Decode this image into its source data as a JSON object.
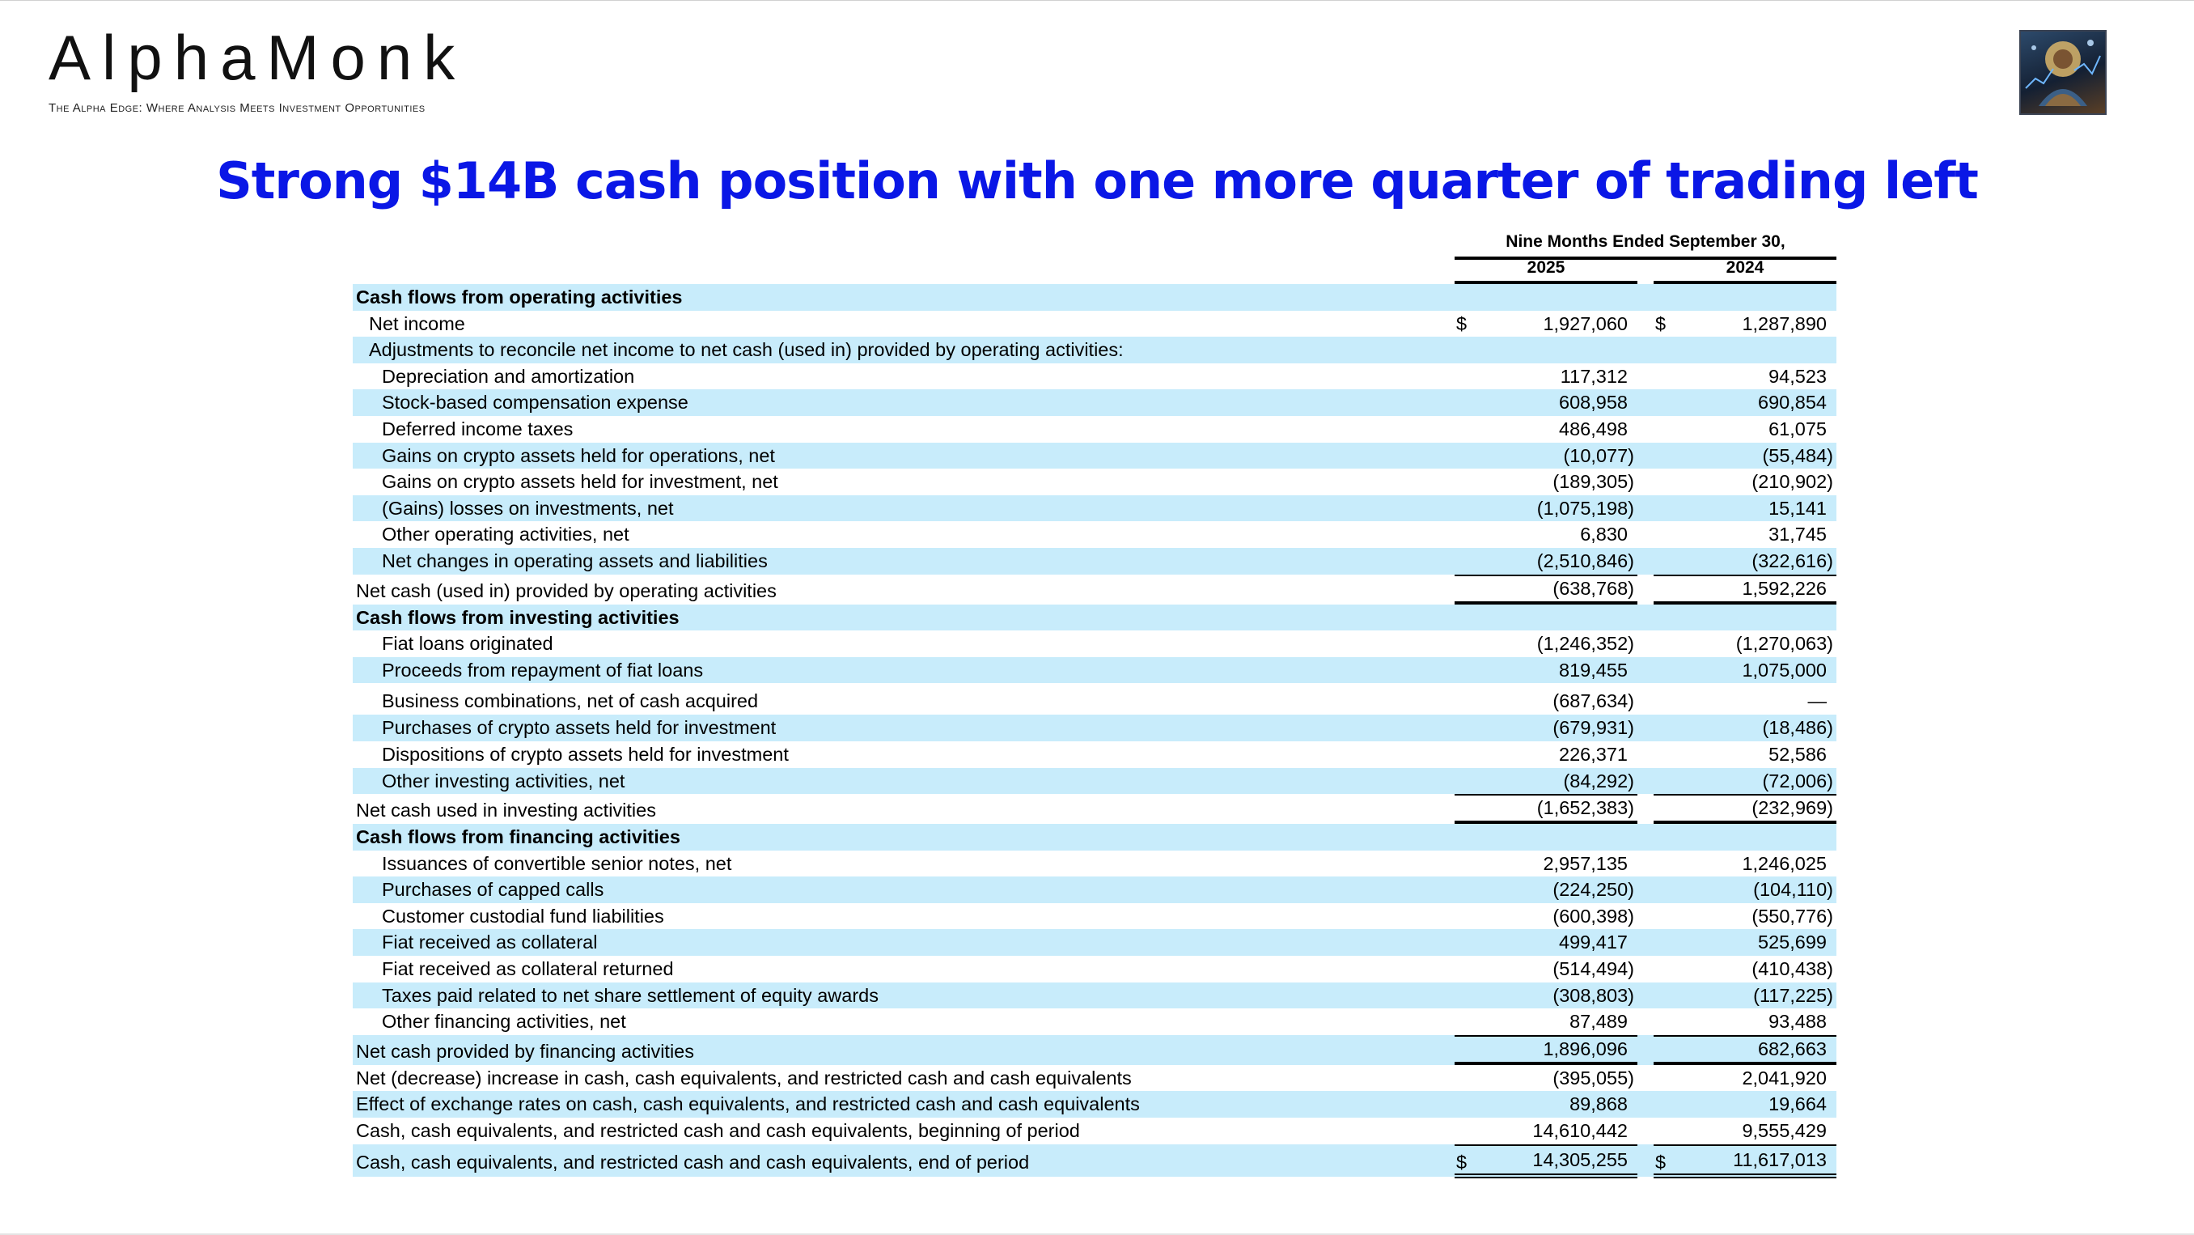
{
  "brand": {
    "name": "AlphaMonk",
    "tagline": "The Alpha Edge: Where Analysis Meets Investment Opportunities"
  },
  "logo": {
    "icon": "monk-meditating-icon"
  },
  "headline": "Strong $14B cash position with one more quarter of trading left",
  "colors": {
    "headline": "#0a17e6",
    "row_shade": "#c8ecfb"
  },
  "table": {
    "period_header": "Nine Months Ended September 30,",
    "year_1": "2025",
    "year_2": "2024",
    "currency": "$",
    "rows": [
      {
        "label": "Cash flows from operating activities",
        "v1": "",
        "v2": "",
        "bold": true,
        "indent": 0,
        "shade": true
      },
      {
        "label": "Net income",
        "v1": "1,927,060",
        "v2": "1,287,890",
        "indent": 1,
        "shade": false,
        "currency": true
      },
      {
        "label": "Adjustments to reconcile net income to net cash (used in) provided by operating activities:",
        "v1": "",
        "v2": "",
        "indent": 1,
        "shade": true
      },
      {
        "label": "Depreciation and amortization",
        "v1": "117,312",
        "v2": "94,523",
        "indent": 2,
        "shade": false
      },
      {
        "label": "Stock-based compensation expense",
        "v1": "608,958",
        "v2": "690,854",
        "indent": 2,
        "shade": true
      },
      {
        "label": "Deferred income taxes",
        "v1": "486,498",
        "v2": "61,075",
        "indent": 2,
        "shade": false
      },
      {
        "label": "Gains on crypto assets held for operations, net",
        "v1": "(10,077)",
        "v2": "(55,484)",
        "indent": 2,
        "shade": true
      },
      {
        "label": "Gains on crypto assets held for investment, net",
        "v1": "(189,305)",
        "v2": "(210,902)",
        "indent": 2,
        "shade": false
      },
      {
        "label": "(Gains) losses on investments, net",
        "v1": "(1,075,198)",
        "v2": "15,141",
        "indent": 2,
        "shade": true
      },
      {
        "label": "Other operating activities, net",
        "v1": "6,830",
        "v2": "31,745",
        "indent": 2,
        "shade": false
      },
      {
        "label": "Net changes in operating assets and liabilities",
        "v1": "(2,510,846)",
        "v2": "(322,616)",
        "indent": 2,
        "shade": true
      },
      {
        "label": "Net cash (used in) provided by operating activities",
        "v1": "(638,768)",
        "v2": "1,592,226",
        "indent": 0,
        "shade": false,
        "total": true
      },
      {
        "label": "Cash flows from investing activities",
        "v1": "",
        "v2": "",
        "bold": true,
        "indent": 0,
        "shade": true
      },
      {
        "label": "Fiat loans originated",
        "v1": "(1,246,352)",
        "v2": "(1,270,063)",
        "indent": 2,
        "shade": false
      },
      {
        "label": "Proceeds from repayment of fiat loans",
        "v1": "819,455",
        "v2": "1,075,000",
        "indent": 2,
        "shade": true
      },
      {
        "label": "Business combinations, net of cash acquired",
        "v1": "(687,634)",
        "v2": "—",
        "indent": 2,
        "shade": false
      },
      {
        "label": "Purchases of crypto assets held for investment",
        "v1": "(679,931)",
        "v2": "(18,486)",
        "indent": 2,
        "shade": true
      },
      {
        "label": "Dispositions of crypto assets held for investment",
        "v1": "226,371",
        "v2": "52,586",
        "indent": 2,
        "shade": false
      },
      {
        "label": "Other investing activities, net",
        "v1": "(84,292)",
        "v2": "(72,006)",
        "indent": 2,
        "shade": true
      },
      {
        "label": "Net cash used in investing activities",
        "v1": "(1,652,383)",
        "v2": "(232,969)",
        "indent": 0,
        "shade": false,
        "total": true
      },
      {
        "label": "Cash flows from financing activities",
        "v1": "",
        "v2": "",
        "bold": true,
        "indent": 0,
        "shade": true
      },
      {
        "label": "Issuances of convertible senior notes, net",
        "v1": "2,957,135",
        "v2": "1,246,025",
        "indent": 2,
        "shade": false
      },
      {
        "label": "Purchases of capped calls",
        "v1": "(224,250)",
        "v2": "(104,110)",
        "indent": 2,
        "shade": true
      },
      {
        "label": "Customer custodial fund liabilities",
        "v1": "(600,398)",
        "v2": "(550,776)",
        "indent": 2,
        "shade": false
      },
      {
        "label": "Fiat received as collateral",
        "v1": "499,417",
        "v2": "525,699",
        "indent": 2,
        "shade": true
      },
      {
        "label": "Fiat received as collateral returned",
        "v1": "(514,494)",
        "v2": "(410,438)",
        "indent": 2,
        "shade": false
      },
      {
        "label": "Taxes paid related to net share settlement of equity awards",
        "v1": "(308,803)",
        "v2": "(117,225)",
        "indent": 2,
        "shade": true
      },
      {
        "label": "Other financing activities, net",
        "v1": "87,489",
        "v2": "93,488",
        "indent": 2,
        "shade": false
      },
      {
        "label": "Net cash provided by financing activities",
        "v1": "1,896,096",
        "v2": "682,663",
        "indent": 0,
        "shade": true,
        "total": true
      },
      {
        "label": "Net (decrease) increase in cash, cash equivalents, and restricted cash and cash equivalents",
        "v1": "(395,055)",
        "v2": "2,041,920",
        "indent": 0,
        "shade": false
      },
      {
        "label": "Effect of exchange rates on cash, cash equivalents, and restricted cash and cash equivalents",
        "v1": "89,868",
        "v2": "19,664",
        "indent": 0,
        "shade": true
      },
      {
        "label": "Cash, cash equivalents, and restricted cash and cash equivalents, beginning of period",
        "v1": "14,610,442",
        "v2": "9,555,429",
        "indent": 0,
        "shade": false
      },
      {
        "label": "Cash, cash equivalents, and restricted cash and cash equivalents, end of period",
        "v1": "14,305,255",
        "v2": "11,617,013",
        "indent": 0,
        "shade": true,
        "currency": true,
        "grand_total": true
      }
    ]
  }
}
